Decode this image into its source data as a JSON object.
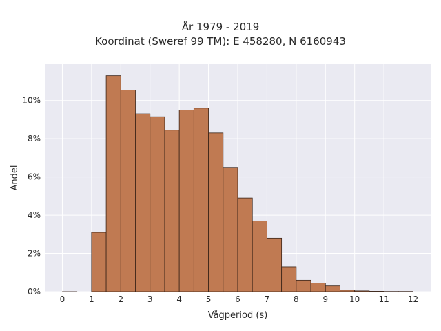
{
  "chart_data": {
    "type": "bar",
    "title": "År 1979 - 2019",
    "subtitle": "Koordinat (Sweref 99 TM): E 458280, N 6160943",
    "xlabel": "Vågperiod (s)",
    "ylabel": "Andel",
    "xlim": [
      -0.6,
      12.6
    ],
    "ylim": [
      0,
      11.9
    ],
    "xticks": [
      "0",
      "1",
      "2",
      "3",
      "4",
      "5",
      "6",
      "7",
      "8",
      "9",
      "10",
      "11",
      "12"
    ],
    "yticks": [
      "0%",
      "2%",
      "4%",
      "6%",
      "8%",
      "10%"
    ],
    "grid": true,
    "bin_width": 0.5,
    "bins": [
      {
        "start": 0.0,
        "value": 0.0
      },
      {
        "start": 1.0,
        "value": 3.1
      },
      {
        "start": 1.5,
        "value": 11.3
      },
      {
        "start": 2.0,
        "value": 10.55
      },
      {
        "start": 2.5,
        "value": 9.3
      },
      {
        "start": 3.0,
        "value": 9.15
      },
      {
        "start": 3.5,
        "value": 8.45
      },
      {
        "start": 4.0,
        "value": 9.5
      },
      {
        "start": 4.5,
        "value": 9.6
      },
      {
        "start": 5.0,
        "value": 8.3
      },
      {
        "start": 5.5,
        "value": 6.5
      },
      {
        "start": 6.0,
        "value": 4.9
      },
      {
        "start": 6.5,
        "value": 3.7
      },
      {
        "start": 7.0,
        "value": 2.8
      },
      {
        "start": 7.5,
        "value": 1.3
      },
      {
        "start": 8.0,
        "value": 0.6
      },
      {
        "start": 8.5,
        "value": 0.45
      },
      {
        "start": 9.0,
        "value": 0.3
      },
      {
        "start": 9.5,
        "value": 0.08
      },
      {
        "start": 10.0,
        "value": 0.04
      },
      {
        "start": 10.5,
        "value": 0.02
      },
      {
        "start": 11.0,
        "value": 0.01
      },
      {
        "start": 11.5,
        "value": 0.01
      }
    ],
    "colors": {
      "bar": "#c07a52",
      "edge": "#3a2418",
      "plot_bg": "#eaeaf2",
      "grid": "#ffffff"
    }
  }
}
